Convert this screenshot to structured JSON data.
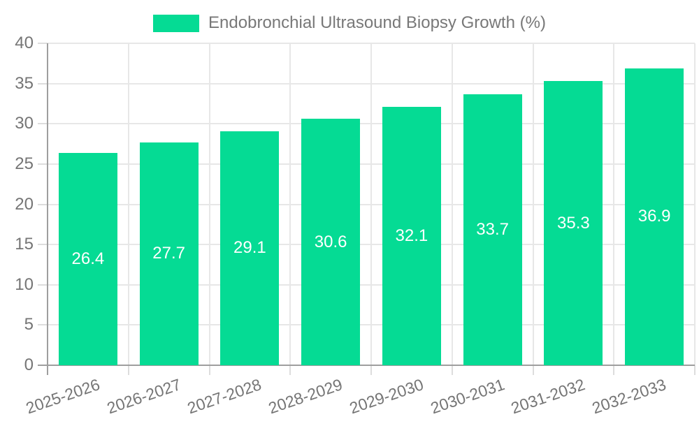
{
  "chart_data": {
    "type": "bar",
    "title": "Endobronchial Ultrasound Biopsy Growth (%)",
    "categories": [
      "2025-2026",
      "2026-2027",
      "2027-2028",
      "2028-2029",
      "2029-2030",
      "2030-2031",
      "2031-2032",
      "2032-2033"
    ],
    "series": [
      {
        "name": "Endobronchial Ultrasound Biopsy Growth (%)",
        "values": [
          26.4,
          27.7,
          29.1,
          30.6,
          32.1,
          33.7,
          35.3,
          36.9
        ]
      }
    ],
    "xlabel": "",
    "ylabel": "",
    "ylim": [
      0,
      40
    ],
    "ytick_step": 5,
    "yticks": [
      0,
      5,
      10,
      15,
      20,
      25,
      30,
      35,
      40
    ],
    "grid": true,
    "legend_position": "top-center",
    "value_label_position": "inside-middle",
    "x_label_rotation_deg": -19,
    "colors": {
      "bar": "#05DB94",
      "axis_line": "#9E9E9E",
      "gridline": "#E7E7E7",
      "tick_line": "#DDDDDD",
      "tick_text": "#757575",
      "title_text": "#787878",
      "bar_label_text": "#FFFFFF",
      "background": "#FFFFFF"
    }
  }
}
